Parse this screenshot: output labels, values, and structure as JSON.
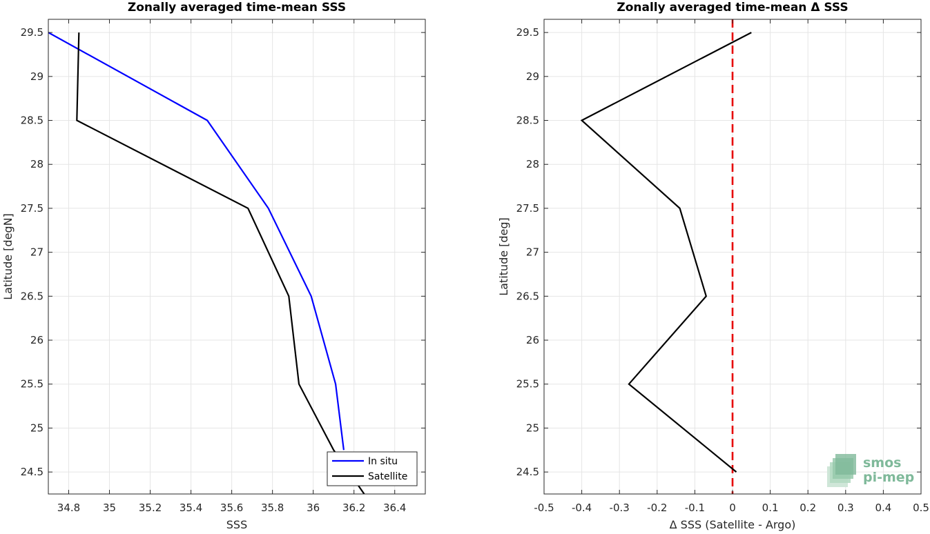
{
  "chart_data": [
    {
      "type": "line",
      "title": "Zonally averaged time-mean SSS",
      "xlabel": "SSS",
      "ylabel": "Latitude [degN]",
      "xlim": [
        34.7,
        36.55
      ],
      "ylim": [
        24.25,
        29.65
      ],
      "xticks": [
        "34.8",
        "35",
        "35.2",
        "35.4",
        "35.6",
        "35.8",
        "36",
        "36.2",
        "36.4"
      ],
      "yticks": [
        "24.5",
        "25",
        "25.5",
        "26",
        "26.5",
        "27",
        "27.5",
        "28",
        "28.5",
        "29",
        "29.5"
      ],
      "grid": true,
      "legend_position": "bottom-right",
      "series": [
        {
          "name": "In situ",
          "color": "#0000ff",
          "x": [
            34.7,
            35.48,
            35.78,
            35.99,
            36.11,
            36.15
          ],
          "y": [
            29.5,
            28.5,
            27.5,
            26.5,
            25.5,
            24.75
          ]
        },
        {
          "name": "Satellite",
          "color": "#000000",
          "x": [
            34.85,
            34.84,
            35.68,
            35.88,
            35.93,
            36.1,
            36.25
          ],
          "y": [
            29.5,
            28.5,
            27.5,
            26.5,
            25.5,
            24.75,
            24.25
          ]
        }
      ]
    },
    {
      "type": "line",
      "title": "Zonally averaged time-mean Δ SSS",
      "xlabel": "Δ SSS (Satellite - Argo)",
      "ylabel": "Latitude [deg]",
      "xlim": [
        -0.5,
        0.5
      ],
      "ylim": [
        24.25,
        29.65
      ],
      "xticks": [
        "-0.5",
        "-0.4",
        "-0.3",
        "-0.2",
        "-0.1",
        "0",
        "0.1",
        "0.2",
        "0.3",
        "0.4",
        "0.5"
      ],
      "yticks": [
        "24.5",
        "25",
        "25.5",
        "26",
        "26.5",
        "27",
        "27.5",
        "28",
        "28.5",
        "29",
        "29.5"
      ],
      "grid": true,
      "reference_line": {
        "x": 0,
        "color": "#e60000",
        "style": "dashed"
      },
      "series": [
        {
          "color": "#000000",
          "x": [
            0.05,
            -0.4,
            -0.14,
            -0.07,
            -0.275,
            0.01
          ],
          "y": [
            29.5,
            28.5,
            27.5,
            26.5,
            25.5,
            24.5
          ]
        }
      ]
    }
  ],
  "logo": {
    "line1": "smos",
    "line2": "pi-mep",
    "color": "#7fb99a"
  }
}
